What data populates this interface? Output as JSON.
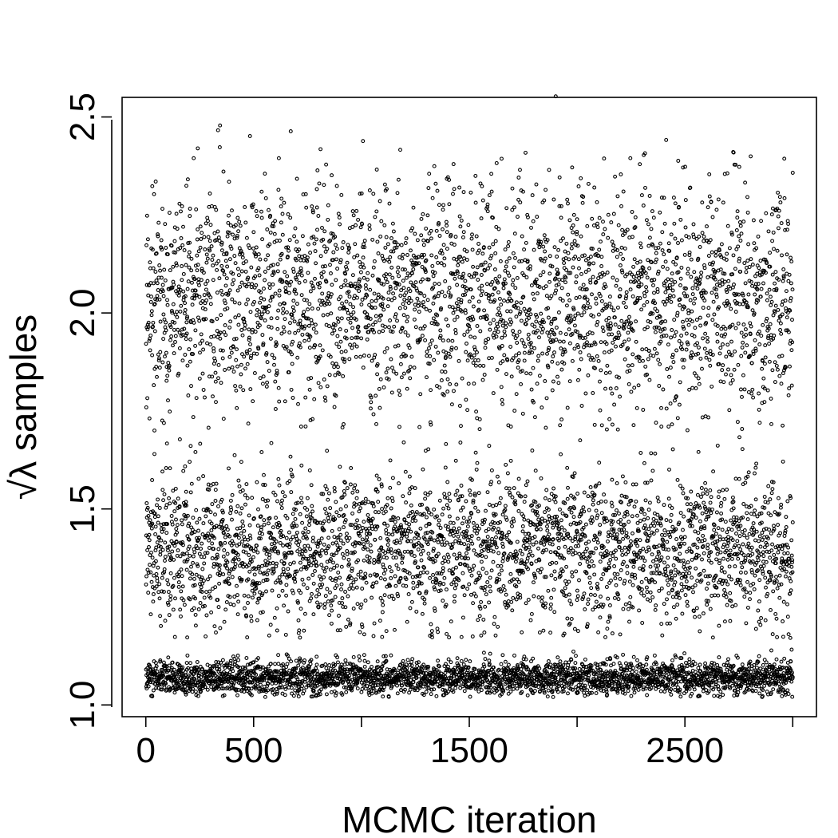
{
  "chart_data": {
    "type": "scatter",
    "xlabel": "MCMC iteration",
    "ylabel": "√λ samples",
    "xlim": [
      -110,
      3110
    ],
    "ylim": [
      0.97,
      2.55
    ],
    "x_ticks": [
      0,
      500,
      1000,
      1500,
      2000,
      2500,
      3000
    ],
    "x_tick_labels": [
      "0",
      "500",
      "",
      "1500",
      "",
      "2500",
      ""
    ],
    "y_ticks": [
      1.0,
      1.5,
      2.0,
      2.5
    ],
    "y_tick_labels": [
      "1.0",
      "1.5",
      "2.0",
      "2.5"
    ],
    "grid": false,
    "legend": "none",
    "marker": "open-circle",
    "series": [
      {
        "x_range": [
          1,
          3000
        ],
        "clusters": [
          {
            "center": 1.07,
            "spread": 0.022,
            "range": [
              1.02,
              1.18
            ]
          },
          {
            "center": 1.4,
            "spread": 0.095,
            "range": [
              1.17,
              1.72
            ]
          },
          {
            "center": 2.04,
            "spread": 0.145,
            "range": [
              1.7,
              2.56
            ]
          }
        ]
      }
    ]
  }
}
